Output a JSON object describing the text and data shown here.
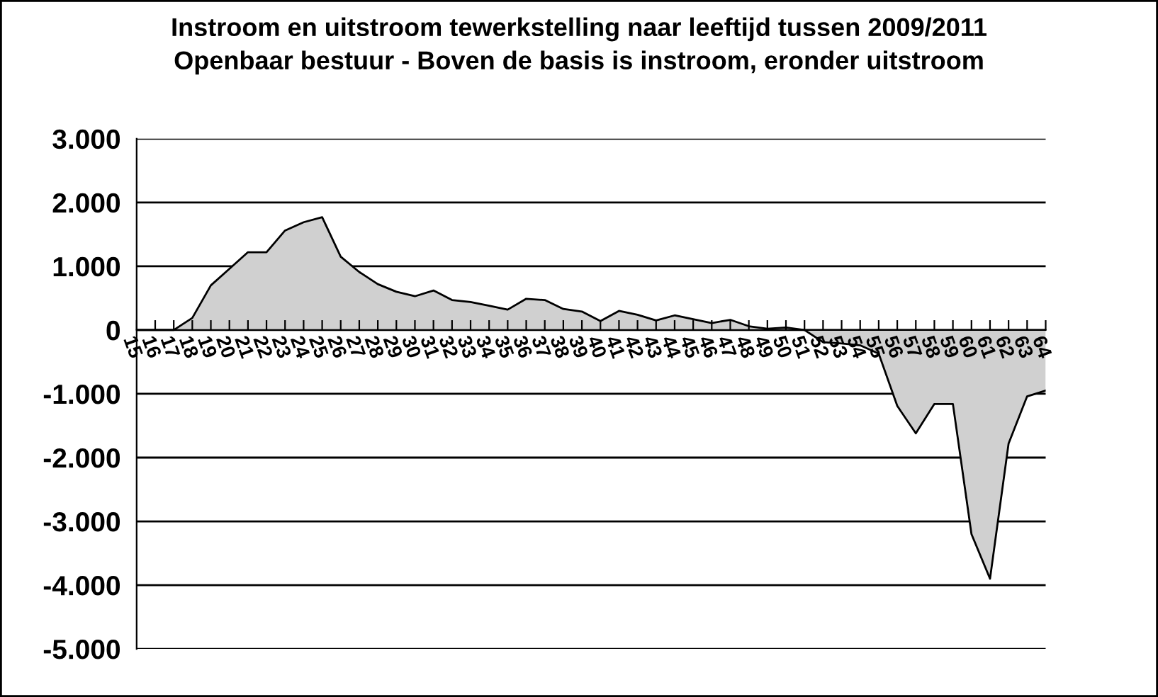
{
  "chart_data": {
    "type": "area",
    "title": "Instroom en uitstroom tewerkstelling naar leeftijd tussen 2009/2011",
    "subtitle": "Openbaar bestuur - Boven de basis is instroom, eronder uitstroom",
    "categories": [
      "15",
      "16",
      "17",
      "18",
      "19",
      "20",
      "21",
      "22",
      "23",
      "24",
      "25",
      "26",
      "27",
      "28",
      "29",
      "30",
      "31",
      "32",
      "33",
      "34",
      "35",
      "36",
      "37",
      "38",
      "39",
      "40",
      "41",
      "42",
      "43",
      "44",
      "45",
      "46",
      "47",
      "48",
      "49",
      "50",
      "51",
      "52",
      "53",
      "54",
      "55",
      "56",
      "57",
      "58",
      "59",
      "60",
      "61",
      "62",
      "63",
      "64"
    ],
    "series": [
      {
        "color": "#d0d0d0",
        "values": [
          0,
          0,
          0,
          190,
          700,
          960,
          1220,
          1220,
          1560,
          1690,
          1770,
          1150,
          910,
          720,
          600,
          530,
          620,
          470,
          440,
          380,
          320,
          490,
          470,
          330,
          290,
          140,
          300,
          240,
          150,
          230,
          170,
          110,
          160,
          60,
          20,
          40,
          0,
          -190,
          -210,
          -240,
          -370,
          -1190,
          -1620,
          -1160,
          -1160,
          -3200,
          -3900,
          -1780,
          -1040,
          -950
        ]
      }
    ],
    "ylim": [
      -5000,
      3000
    ],
    "yticks": [
      {
        "value": -5000,
        "label": "-5.000"
      },
      {
        "value": -4000,
        "label": "-4.000"
      },
      {
        "value": -3000,
        "label": "-3.000"
      },
      {
        "value": -2000,
        "label": "-2.000"
      },
      {
        "value": -1000,
        "label": "-1.000"
      },
      {
        "value": 0,
        "label": "0"
      },
      {
        "value": 1000,
        "label": "1.000"
      },
      {
        "value": 2000,
        "label": "2.000"
      },
      {
        "value": 3000,
        "label": "3.000"
      }
    ],
    "grid": "y"
  }
}
